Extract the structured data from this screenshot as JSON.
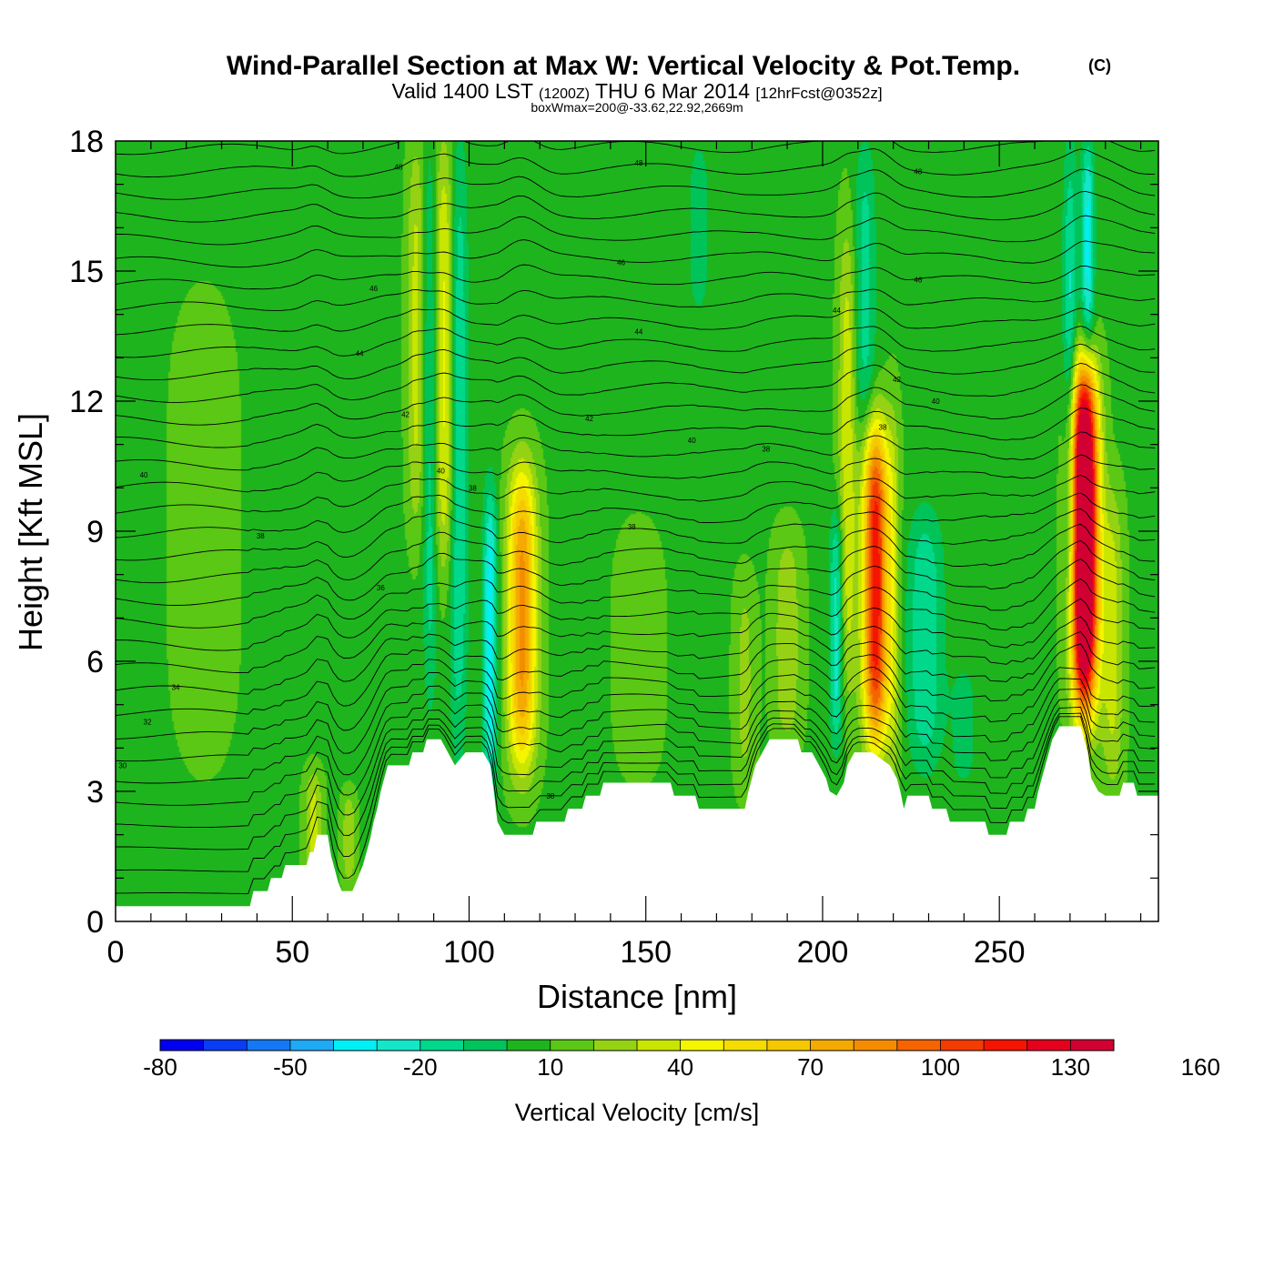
{
  "chart_data": {
    "type": "heatmap",
    "title": "Wind-Parallel Section at Max W: Vertical Velocity & Pot.Temp.",
    "title_mark": "(C)",
    "subtitle_parts": [
      "Valid 1400 LST",
      "(1200Z)",
      "THU 6 Mar 2014",
      "[12hrFcst@0352z]"
    ],
    "subtitle2": "boxWmax=200@-33.62,22.92,2669m",
    "xlabel": "Distance [nm]",
    "ylabel": "Height [Kft MSL]",
    "xlim": [
      0,
      295
    ],
    "ylim": [
      0,
      18
    ],
    "x_ticks": [
      0,
      50,
      100,
      150,
      200,
      250
    ],
    "y_ticks": [
      0,
      3,
      6,
      9,
      12,
      15,
      18
    ],
    "colorbar": {
      "label": "Vertical Velocity [cm/s]",
      "min": -80,
      "max": 180,
      "step": 10,
      "tick_labels": [
        -80,
        -50,
        -20,
        10,
        40,
        70,
        100,
        130,
        160
      ],
      "colors": [
        "#0000f0",
        "#0a3cf5",
        "#1478f5",
        "#1eaaf5",
        "#00f0f5",
        "#14e6c8",
        "#00d88c",
        "#00c45a",
        "#1eb41e",
        "#5ac814",
        "#96d214",
        "#c8e600",
        "#f5f500",
        "#f5dc00",
        "#f5c800",
        "#f5aa00",
        "#f58c00",
        "#f56400",
        "#f53c00",
        "#f51400",
        "#e6001e",
        "#d20032"
      ]
    },
    "w_features": [
      {
        "x": 115,
        "zlo": 3.5,
        "zhi": 10.5,
        "peak": 75,
        "width": 4.0
      },
      {
        "x": 215,
        "zlo": 4.0,
        "zhi": 11.5,
        "peak": 110,
        "width": 3.5
      },
      {
        "x": 274,
        "zlo": 4.8,
        "zhi": 12.8,
        "peak": 175,
        "width": 3.8
      },
      {
        "x": 93,
        "zlo": 8.0,
        "zhi": 18.0,
        "peak": 35,
        "width": 3.0
      },
      {
        "x": 85,
        "zlo": 9.0,
        "zhi": 18.0,
        "peak": 25,
        "width": 2.5
      },
      {
        "x": 207,
        "zlo": 5.0,
        "zhi": 16.0,
        "peak": 30,
        "width": 2.5
      },
      {
        "x": 220,
        "zlo": 3.0,
        "zhi": 12.0,
        "peak": 20,
        "width": 2.0
      },
      {
        "x": 282,
        "zlo": 3.0,
        "zhi": 10.0,
        "peak": 25,
        "width": 3.0
      },
      {
        "x": 190,
        "zlo": 4.0,
        "zhi": 9.0,
        "peak": 20,
        "width": 4.0
      },
      {
        "x": 178,
        "zlo": 3.0,
        "zhi": 8.0,
        "peak": 15,
        "width": 3.0
      },
      {
        "x": 148,
        "zlo": 3.5,
        "zhi": 9.0,
        "peak": 12,
        "width": 6.0
      },
      {
        "x": 56,
        "zlo": 0.8,
        "zhi": 3.5,
        "peak": 25,
        "width": 2.5
      },
      {
        "x": 66,
        "zlo": 0.8,
        "zhi": 3.0,
        "peak": 20,
        "width": 2.0
      },
      {
        "x": 106,
        "zlo": 3.0,
        "zhi": 10.0,
        "peak": -45,
        "width": 2.0
      },
      {
        "x": 97,
        "zlo": 4.0,
        "zhi": 18.0,
        "peak": -30,
        "width": 2.5
      },
      {
        "x": 89,
        "zlo": 5.0,
        "zhi": 18.0,
        "peak": -25,
        "width": 2.0
      },
      {
        "x": 229,
        "zlo": 3.5,
        "zhi": 9.5,
        "peak": -28,
        "width": 5.0
      },
      {
        "x": 204,
        "zlo": 4.0,
        "zhi": 9.5,
        "peak": -35,
        "width": 2.0
      },
      {
        "x": 270,
        "zlo": 6.0,
        "zhi": 18.0,
        "peak": -30,
        "width": 2.0
      },
      {
        "x": 275,
        "zlo": 13.0,
        "zhi": 18.0,
        "peak": -40,
        "width": 1.8
      },
      {
        "x": 212,
        "zlo": 11.0,
        "zhi": 18.0,
        "peak": -22,
        "width": 3.0
      },
      {
        "x": 240,
        "zlo": 3.0,
        "zhi": 6.0,
        "peak": -12,
        "width": 4.0
      },
      {
        "x": 165,
        "zlo": 14.0,
        "zhi": 18.0,
        "peak": -15,
        "width": 3.0
      },
      {
        "x": 25,
        "zlo": 4.0,
        "zhi": 14.0,
        "peak": 12,
        "width": 8.0
      }
    ],
    "terrain": [
      [
        0,
        0.35
      ],
      [
        38,
        0.35
      ],
      [
        39,
        0.7
      ],
      [
        43,
        0.7
      ],
      [
        44,
        1.0
      ],
      [
        47,
        1.0
      ],
      [
        48,
        1.3
      ],
      [
        54,
        1.3
      ],
      [
        55,
        1.6
      ],
      [
        56,
        1.6
      ],
      [
        57,
        2.0
      ],
      [
        60,
        2.0
      ],
      [
        61,
        1.5
      ],
      [
        62,
        1.2
      ],
      [
        63,
        0.9
      ],
      [
        64,
        0.7
      ],
      [
        67,
        0.7
      ],
      [
        68,
        0.9
      ],
      [
        69,
        1.1
      ],
      [
        70,
        1.3
      ],
      [
        71,
        1.6
      ],
      [
        72,
        1.9
      ],
      [
        73,
        2.3
      ],
      [
        74,
        2.6
      ],
      [
        75,
        3.0
      ],
      [
        76,
        3.3
      ],
      [
        77,
        3.6
      ],
      [
        83,
        3.6
      ],
      [
        84,
        3.9
      ],
      [
        87,
        3.9
      ],
      [
        88,
        4.2
      ],
      [
        92,
        4.2
      ],
      [
        94,
        3.9
      ],
      [
        96,
        3.6
      ],
      [
        99,
        3.9
      ],
      [
        104,
        3.9
      ],
      [
        106,
        3.6
      ],
      [
        107,
        3.0
      ],
      [
        108,
        2.3
      ],
      [
        110,
        2.0
      ],
      [
        118,
        2.0
      ],
      [
        119,
        2.3
      ],
      [
        127,
        2.3
      ],
      [
        128,
        2.6
      ],
      [
        132,
        2.6
      ],
      [
        133,
        2.9
      ],
      [
        137,
        2.9
      ],
      [
        138,
        3.2
      ],
      [
        157,
        3.2
      ],
      [
        158,
        2.9
      ],
      [
        164,
        2.9
      ],
      [
        165,
        2.6
      ],
      [
        178,
        2.6
      ],
      [
        179,
        3.0
      ],
      [
        180,
        3.3
      ],
      [
        181,
        3.6
      ],
      [
        183,
        3.9
      ],
      [
        185,
        4.2
      ],
      [
        193,
        4.2
      ],
      [
        194,
        3.9
      ],
      [
        197,
        3.9
      ],
      [
        199,
        3.6
      ],
      [
        201,
        3.3
      ],
      [
        202,
        3.0
      ],
      [
        204,
        2.9
      ],
      [
        206,
        3.2
      ],
      [
        207,
        3.6
      ],
      [
        209,
        3.9
      ],
      [
        214,
        3.9
      ],
      [
        219,
        3.6
      ],
      [
        221,
        3.3
      ],
      [
        222,
        3.0
      ],
      [
        223,
        2.6
      ],
      [
        224,
        2.9
      ],
      [
        230,
        2.9
      ],
      [
        231,
        2.6
      ],
      [
        235,
        2.6
      ],
      [
        236,
        2.3
      ],
      [
        246,
        2.3
      ],
      [
        247,
        2.0
      ],
      [
        252,
        2.0
      ],
      [
        253,
        2.3
      ],
      [
        257,
        2.3
      ],
      [
        258,
        2.6
      ],
      [
        260,
        2.6
      ],
      [
        261,
        3.0
      ],
      [
        262,
        3.3
      ],
      [
        263,
        3.6
      ],
      [
        264,
        3.9
      ],
      [
        265,
        4.2
      ],
      [
        267,
        4.5
      ],
      [
        273,
        4.5
      ],
      [
        274,
        4.2
      ],
      [
        275,
        3.9
      ],
      [
        276,
        3.3
      ],
      [
        278,
        3.0
      ],
      [
        280,
        2.9
      ],
      [
        284,
        2.9
      ],
      [
        285,
        3.2
      ],
      [
        288,
        3.2
      ],
      [
        289,
        2.9
      ],
      [
        295,
        2.9
      ]
    ],
    "isentrope_labels": [
      {
        "x": 2,
        "z": 3.6,
        "text": "30"
      },
      {
        "x": 9,
        "z": 4.6,
        "text": "32"
      },
      {
        "x": 17,
        "z": 5.4,
        "text": "34"
      },
      {
        "x": 75,
        "z": 7.7,
        "text": "36"
      },
      {
        "x": 41,
        "z": 8.9,
        "text": "38"
      },
      {
        "x": 8,
        "z": 10.3,
        "text": "40"
      },
      {
        "x": 82,
        "z": 11.7,
        "text": "42"
      },
      {
        "x": 69,
        "z": 13.1,
        "text": "44"
      },
      {
        "x": 73,
        "z": 14.6,
        "text": "46"
      },
      {
        "x": 80,
        "z": 17.4,
        "text": "48"
      },
      {
        "x": 92,
        "z": 10.4,
        "text": "40"
      },
      {
        "x": 101,
        "z": 10.0,
        "text": "38"
      },
      {
        "x": 134,
        "z": 11.6,
        "text": "42"
      },
      {
        "x": 143,
        "z": 15.2,
        "text": "46"
      },
      {
        "x": 148,
        "z": 17.5,
        "text": "48"
      },
      {
        "x": 148,
        "z": 13.6,
        "text": "44"
      },
      {
        "x": 163,
        "z": 11.1,
        "text": "40"
      },
      {
        "x": 146,
        "z": 9.1,
        "text": "38"
      },
      {
        "x": 123,
        "z": 2.9,
        "text": "38"
      },
      {
        "x": 184,
        "z": 10.9,
        "text": "38"
      },
      {
        "x": 204,
        "z": 14.1,
        "text": "44"
      },
      {
        "x": 221,
        "z": 12.5,
        "text": "42"
      },
      {
        "x": 227,
        "z": 14.8,
        "text": "46"
      },
      {
        "x": 227,
        "z": 17.3,
        "text": "48"
      },
      {
        "x": 232,
        "z": 12.0,
        "text": "40"
      },
      {
        "x": 217,
        "z": 11.4,
        "text": "38"
      }
    ]
  }
}
